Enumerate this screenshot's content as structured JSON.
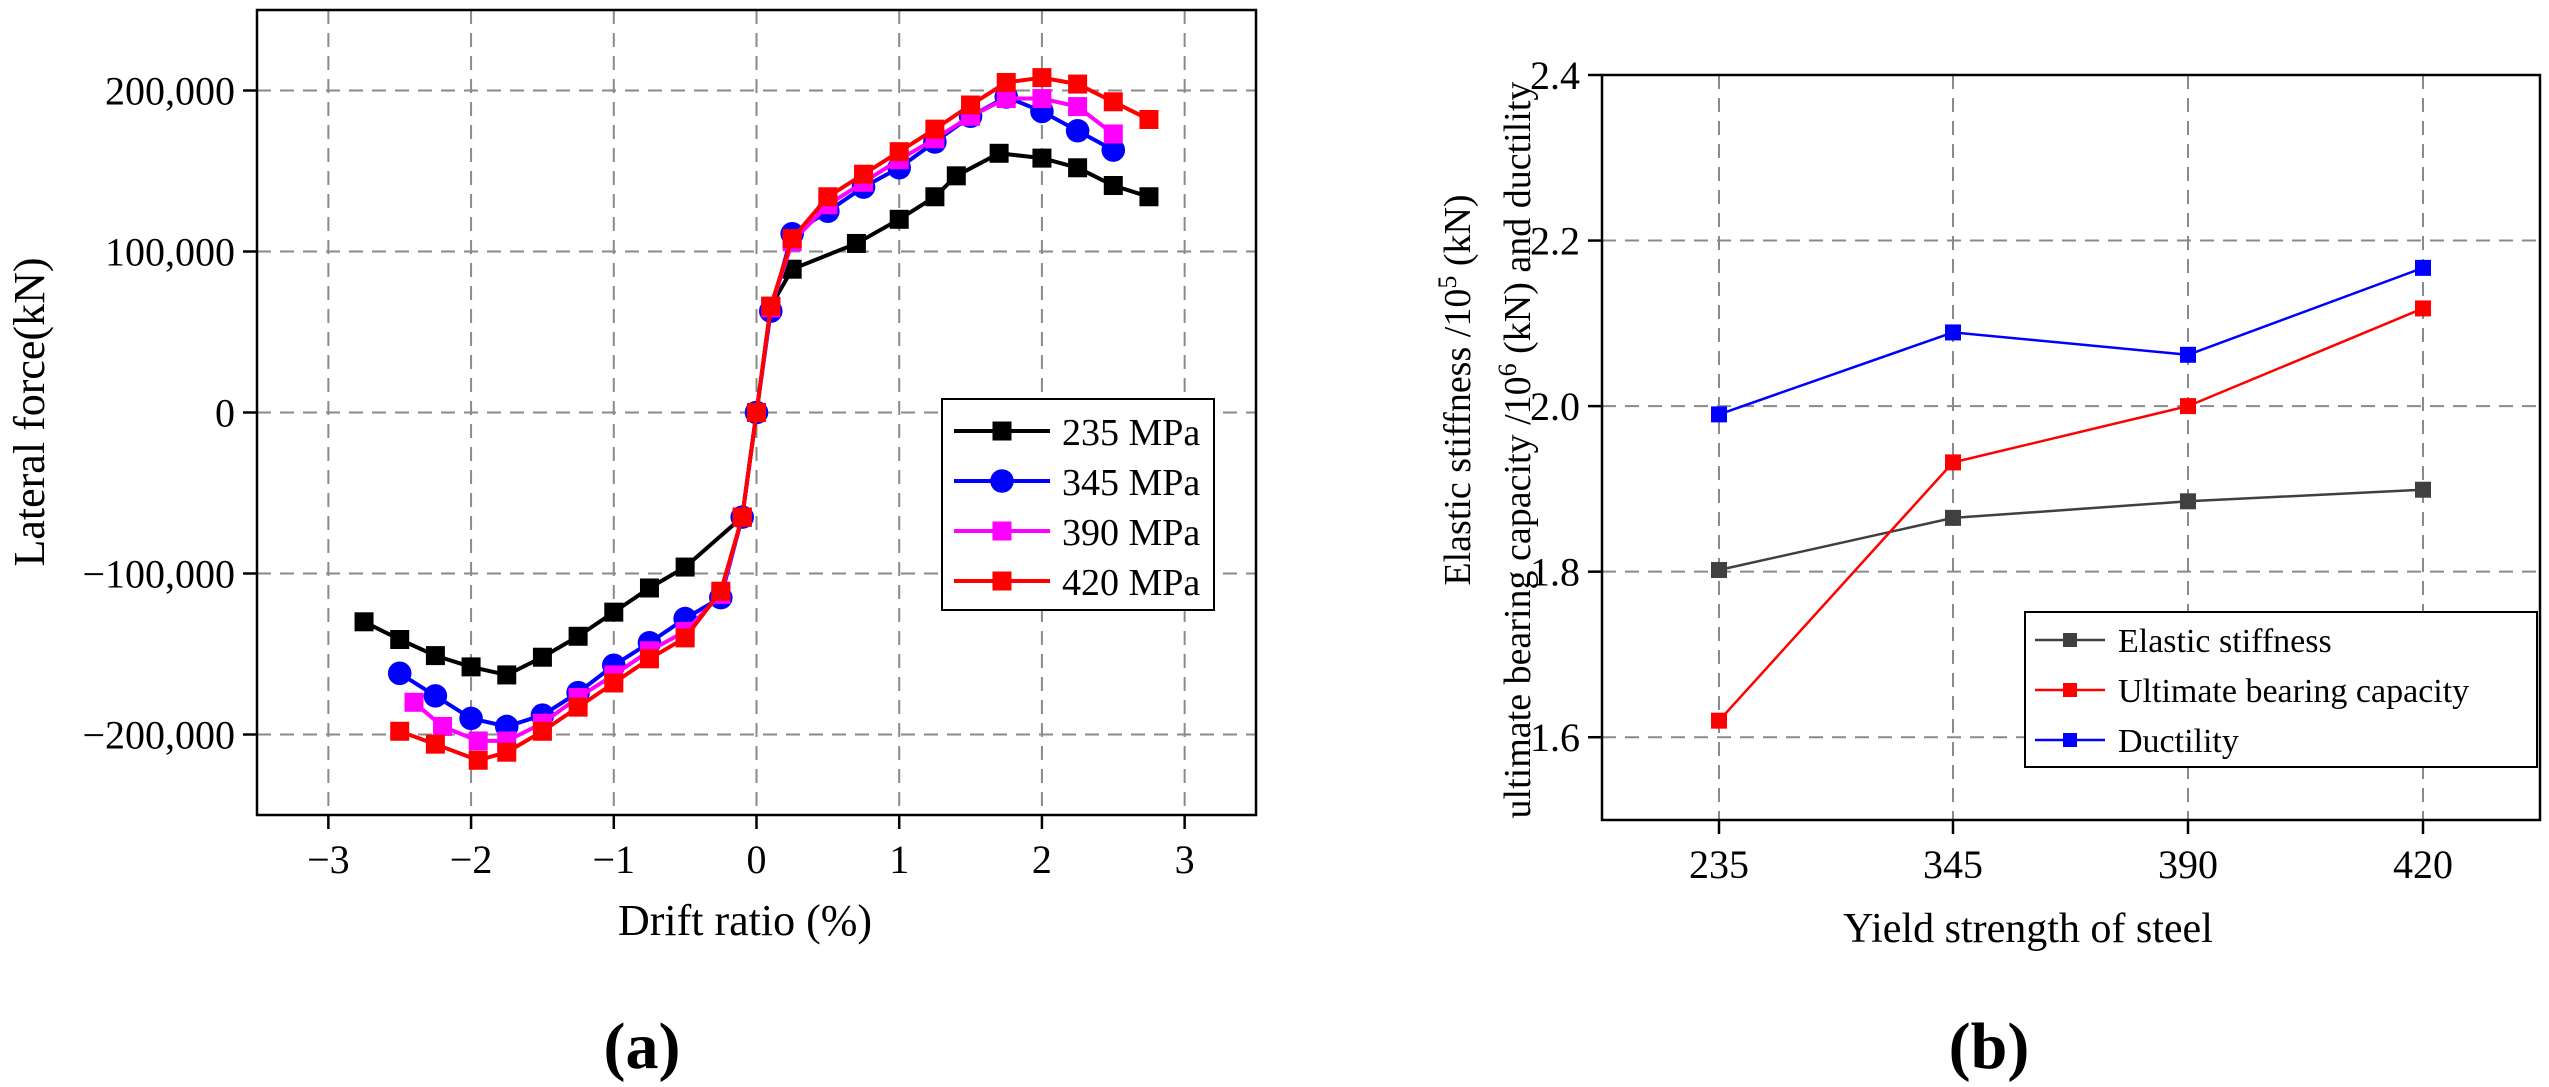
{
  "panels": {
    "a_label": "(a)",
    "b_label": "(b)"
  },
  "chart_data": [
    {
      "type": "line",
      "xlabel": "Drift ratio (%)",
      "ylabel": "Lateral force(kN)",
      "xlim": [
        -3.5,
        3.5
      ],
      "ylim": [
        -250000,
        250000
      ],
      "xticks": [
        -3,
        -2,
        -1,
        0,
        1,
        2,
        3
      ],
      "xtick_labels": [
        "−3",
        "−2",
        "−1",
        "0",
        "1",
        "2",
        "3"
      ],
      "yticks": [
        -200000,
        -100000,
        0,
        100000,
        200000
      ],
      "ytick_labels": [
        "−200,000",
        "−100,000",
        "0",
        "100,000",
        "200,000"
      ],
      "grid": true,
      "legend_position": "center-right",
      "series": [
        {
          "name": "235 MPa",
          "color": "#000000",
          "marker": "square",
          "x": [
            -2.75,
            -2.5,
            -2.25,
            -2.0,
            -1.75,
            -1.5,
            -1.25,
            -1.0,
            -0.75,
            -0.5,
            -0.1,
            0.0,
            0.1,
            0.25,
            0.7,
            1.0,
            1.25,
            1.4,
            1.7,
            2.0,
            2.25,
            2.5,
            2.75
          ],
          "y": [
            -130000,
            -141000,
            -151000,
            -158000,
            -163000,
            -152000,
            -139000,
            -124000,
            -109000,
            -96000,
            -65000,
            0,
            66000,
            89000,
            105000,
            120000,
            134000,
            147000,
            161000,
            158000,
            152000,
            141000,
            134000
          ]
        },
        {
          "name": "345 MPa",
          "color": "#0000ff",
          "marker": "circle",
          "x": [
            -2.5,
            -2.25,
            -2.0,
            -1.75,
            -1.5,
            -1.25,
            -1.0,
            -0.75,
            -0.5,
            -0.25,
            -0.1,
            0.0,
            0.1,
            0.25,
            0.5,
            0.75,
            1.0,
            1.25,
            1.5,
            1.75,
            2.0,
            2.25,
            2.5
          ],
          "y": [
            -162000,
            -176000,
            -190000,
            -195000,
            -188000,
            -174000,
            -157000,
            -143000,
            -128000,
            -115000,
            -65000,
            0,
            63000,
            111000,
            125000,
            140000,
            152000,
            168000,
            184000,
            196000,
            187000,
            175000,
            163000
          ]
        },
        {
          "name": "390 MPa",
          "color": "#ff00ff",
          "marker": "square",
          "x": [
            -2.4,
            -2.2,
            -1.95,
            -1.75,
            -1.5,
            -1.25,
            -1.0,
            -0.75,
            -0.5,
            -0.25,
            -0.1,
            0.0,
            0.1,
            0.25,
            0.5,
            0.75,
            1.0,
            1.25,
            1.5,
            1.75,
            2.0,
            2.25,
            2.5
          ],
          "y": [
            -180000,
            -195000,
            -204000,
            -204000,
            -193000,
            -177000,
            -163000,
            -148000,
            -136000,
            -113000,
            -65000,
            0,
            65000,
            106000,
            129000,
            143000,
            157000,
            170000,
            184000,
            195000,
            195000,
            190000,
            173000
          ]
        },
        {
          "name": "420 MPa",
          "color": "#ff0000",
          "marker": "square",
          "x": [
            -2.5,
            -2.25,
            -1.95,
            -1.75,
            -1.5,
            -1.25,
            -1.0,
            -0.75,
            -0.5,
            -0.25,
            -0.1,
            0.0,
            0.1,
            0.25,
            0.5,
            0.75,
            1.0,
            1.25,
            1.5,
            1.75,
            2.0,
            2.25,
            2.5,
            2.75
          ],
          "y": [
            -198000,
            -206000,
            -216000,
            -211000,
            -198000,
            -183000,
            -168000,
            -153000,
            -140000,
            -111000,
            -65000,
            0,
            66000,
            108000,
            134000,
            148000,
            162000,
            176000,
            191000,
            205000,
            208000,
            204000,
            193000,
            182000
          ]
        }
      ]
    },
    {
      "type": "line",
      "xlabel": "Yield strength of steel",
      "ylabel_line1": "ultimate bearing capacity /10",
      "ylabel_line1_sup": "6",
      "ylabel_line1_tail": " (kN) and ductility",
      "ylabel_line2": "Elastic stiffness /10",
      "ylabel_line2_sup": "5",
      "ylabel_line2_tail": " (kN)",
      "categories": [
        "235",
        "345",
        "390",
        "420"
      ],
      "ylim": [
        1.5,
        2.4
      ],
      "yticks": [
        1.6,
        1.8,
        2.0,
        2.2,
        2.4
      ],
      "ytick_labels": [
        "1.6",
        "1.8",
        "2.0",
        "2.2",
        "2.4"
      ],
      "grid": true,
      "legend_position": "bottom-right",
      "series": [
        {
          "name": "Elastic stiffness",
          "color": "#404040",
          "marker": "square",
          "values": [
            1.802,
            1.865,
            1.885,
            1.899
          ]
        },
        {
          "name": "Ultimate bearing capacity",
          "color": "#ff0000",
          "marker": "square",
          "values": [
            1.62,
            1.932,
            2.0,
            2.118
          ]
        },
        {
          "name": "Ductility",
          "color": "#0000ff",
          "marker": "square",
          "values": [
            1.99,
            2.089,
            2.062,
            2.167
          ]
        }
      ]
    }
  ]
}
